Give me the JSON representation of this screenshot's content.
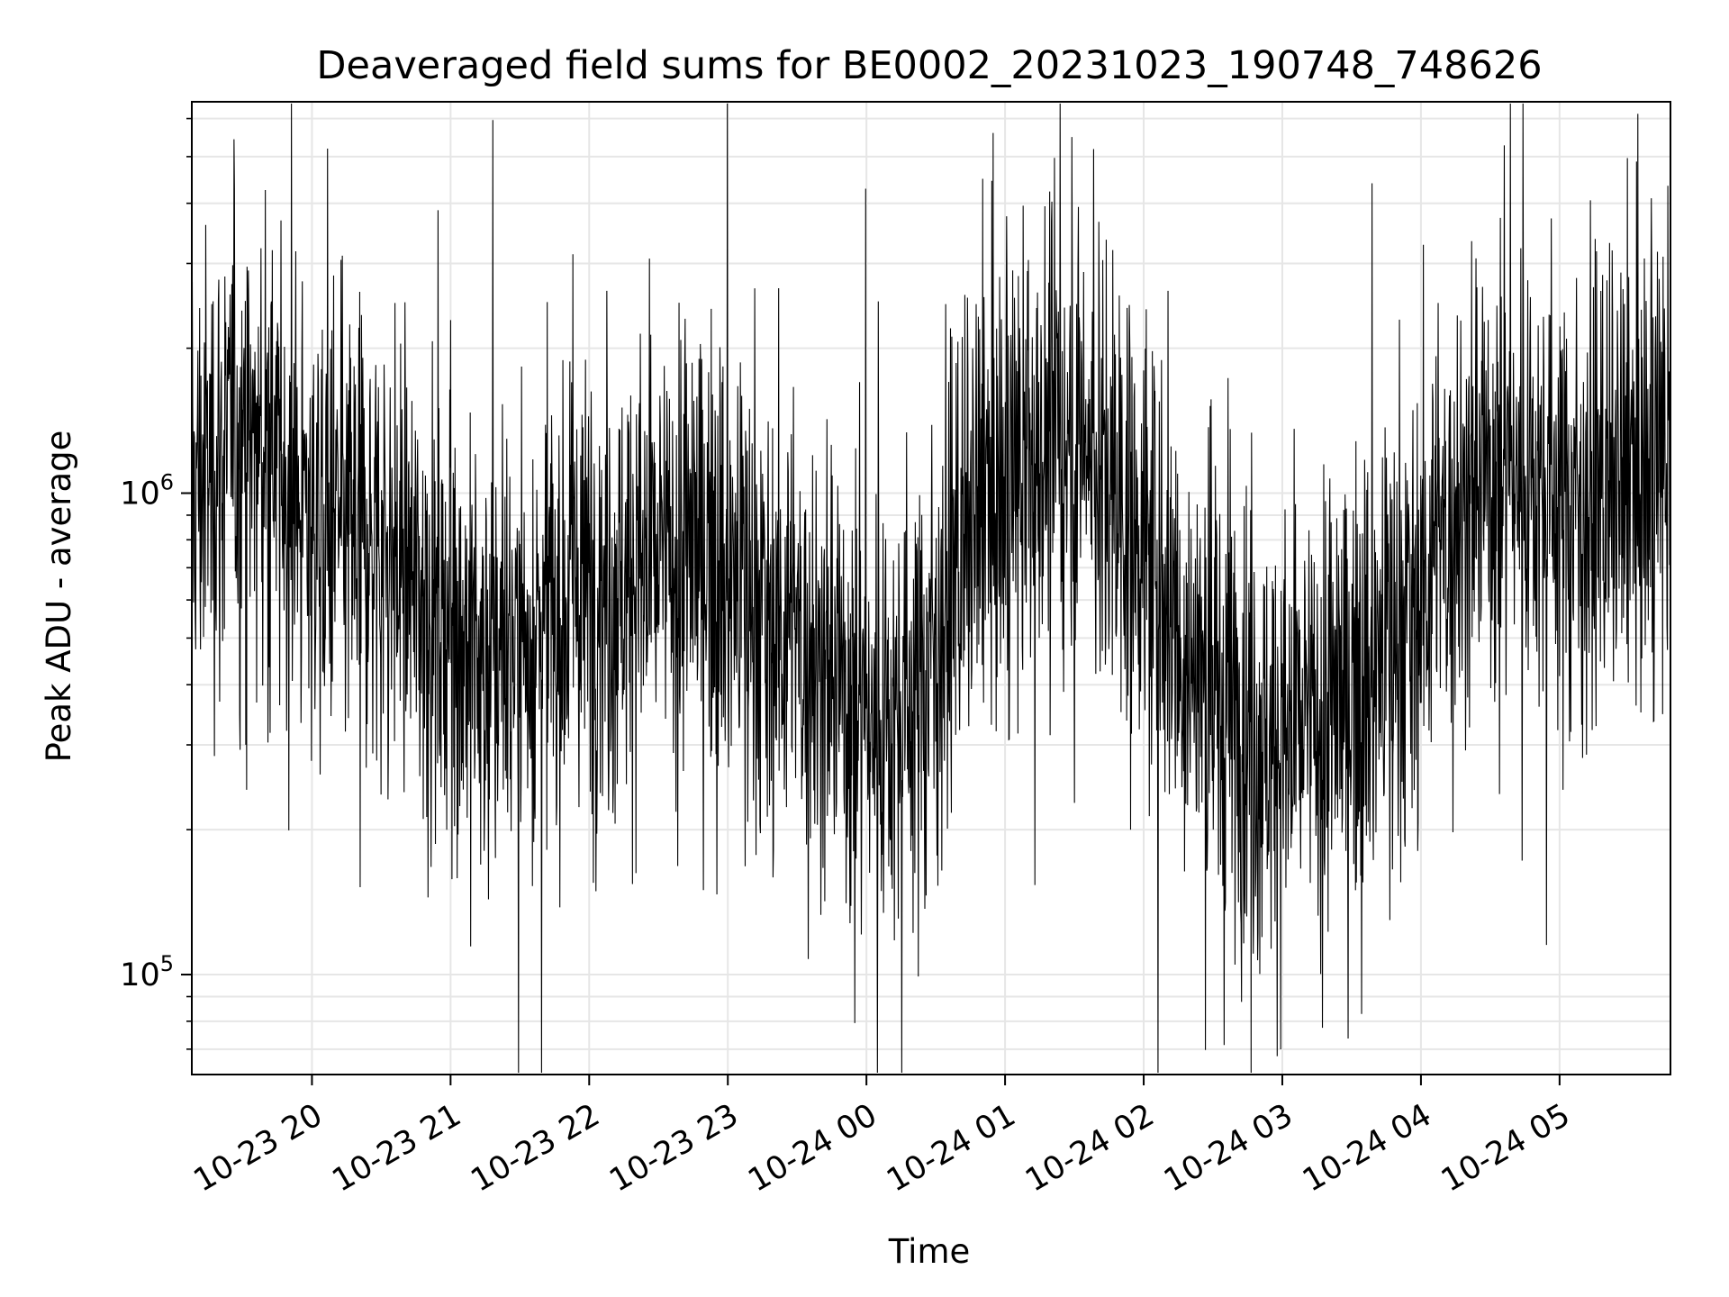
{
  "chart_data": {
    "type": "line",
    "title": "Deaveraged field sums for BE0002_20231023_190748_748626",
    "xlabel": "Time",
    "ylabel": "Peak ADU - average",
    "y_scale": "log",
    "ylim": [
      62000,
      6500000
    ],
    "xlim": [
      "2023-10-23 19:08",
      "2023-10-24 05:48"
    ],
    "x_ticks": [
      {
        "value": "2023-10-23 20:00",
        "label": "10-23 20"
      },
      {
        "value": "2023-10-23 21:00",
        "label": "10-23 21"
      },
      {
        "value": "2023-10-23 22:00",
        "label": "10-23 22"
      },
      {
        "value": "2023-10-23 23:00",
        "label": "10-23 23"
      },
      {
        "value": "2023-10-24 00:00",
        "label": "10-24 00"
      },
      {
        "value": "2023-10-24 01:00",
        "label": "10-24 01"
      },
      {
        "value": "2023-10-24 02:00",
        "label": "10-24 02"
      },
      {
        "value": "2023-10-24 03:00",
        "label": "10-24 03"
      },
      {
        "value": "2023-10-24 04:00",
        "label": "10-24 04"
      },
      {
        "value": "2023-10-24 05:00",
        "label": "10-24 05"
      }
    ],
    "y_ticks": [
      {
        "value": 100000,
        "base": "10",
        "exp": "5"
      },
      {
        "value": 1000000,
        "base": "10",
        "exp": "6"
      }
    ],
    "grid": true,
    "line_color": "#000000",
    "grid_color": "#e6e6e6",
    "series": [
      {
        "x": [
          "2023-10-23 19:08",
          "2023-10-23 19:20",
          "2023-10-23 19:30",
          "2023-10-23 19:40",
          "2023-10-23 19:50",
          "2023-10-23 20:00",
          "2023-10-23 20:10",
          "2023-10-23 20:20",
          "2023-10-23 20:30",
          "2023-10-23 20:40",
          "2023-10-23 20:50",
          "2023-10-23 21:00",
          "2023-10-23 21:10",
          "2023-10-23 21:20",
          "2023-10-23 21:30",
          "2023-10-23 21:40",
          "2023-10-23 21:50",
          "2023-10-23 22:00",
          "2023-10-23 22:10",
          "2023-10-23 22:20",
          "2023-10-23 22:30",
          "2023-10-23 22:40",
          "2023-10-23 22:50",
          "2023-10-23 23:00",
          "2023-10-23 23:10",
          "2023-10-23 23:20",
          "2023-10-23 23:30",
          "2023-10-23 23:40",
          "2023-10-23 23:50",
          "2023-10-24 00:00",
          "2023-10-24 00:10",
          "2023-10-24 00:20",
          "2023-10-24 00:30",
          "2023-10-24 00:40",
          "2023-10-24 00:50",
          "2023-10-24 01:00",
          "2023-10-24 01:10",
          "2023-10-24 01:20",
          "2023-10-24 01:30",
          "2023-10-24 01:40",
          "2023-10-24 01:50",
          "2023-10-24 02:00",
          "2023-10-24 02:10",
          "2023-10-24 02:20",
          "2023-10-24 02:30",
          "2023-10-24 02:40",
          "2023-10-24 02:50",
          "2023-10-24 03:00",
          "2023-10-24 03:10",
          "2023-10-24 03:20",
          "2023-10-24 03:30",
          "2023-10-24 03:40",
          "2023-10-24 03:50",
          "2023-10-24 04:00",
          "2023-10-24 04:10",
          "2023-10-24 04:20",
          "2023-10-24 04:30",
          "2023-10-24 04:40",
          "2023-10-24 04:50",
          "2023-10-24 05:00",
          "2023-10-24 05:10",
          "2023-10-24 05:20",
          "2023-10-24 05:30",
          "2023-10-24 05:40",
          "2023-10-24 05:48"
        ],
        "y": [
          1000000,
          1200000,
          1300000,
          1200000,
          1000000,
          900000,
          800000,
          850000,
          800000,
          700000,
          600000,
          550000,
          450000,
          450000,
          500000,
          550000,
          600000,
          650000,
          650000,
          700000,
          700000,
          750000,
          800000,
          700000,
          600000,
          550000,
          500000,
          450000,
          400000,
          350000,
          350000,
          380000,
          500000,
          700000,
          900000,
          1000000,
          1100000,
          1300000,
          1400000,
          1200000,
          1000000,
          800000,
          600000,
          450000,
          380000,
          350000,
          320000,
          300000,
          320000,
          350000,
          400000,
          450000,
          500000,
          650000,
          800000,
          1000000,
          1100000,
          1150000,
          1100000,
          1000000,
          950000,
          950000,
          1000000,
          1100000,
          1200000
        ]
      }
    ]
  }
}
